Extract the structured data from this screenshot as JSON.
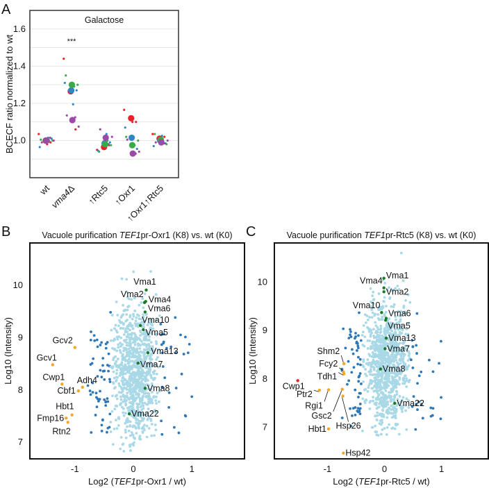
{
  "panels": {
    "a": "A",
    "b": "B",
    "c": "C"
  },
  "colors": {
    "red": "#e8212a",
    "blue": "#2f86c6",
    "green": "#3aaa48",
    "purple": "#9b4aa8",
    "cloud": "#a9d8e6",
    "outlier": "#2f78b8",
    "vma": "#1a7a2a",
    "orange": "#f5a623",
    "highlight_red": "#e8212a"
  },
  "chart_data": [
    {
      "id": "A",
      "type": "scatter",
      "title": "Galactose",
      "xlabel": "",
      "ylabel": "BCECF ratio normalized to wt",
      "ylim": [
        0.8,
        1.7
      ],
      "yticks": [
        "1.0",
        "1.2",
        "1.4",
        "1.6"
      ],
      "ytick_values": [
        1.0,
        1.2,
        1.4,
        1.6
      ],
      "grid": true,
      "categories": [
        {
          "pre": "",
          "italic": "",
          "text": "wt"
        },
        {
          "pre": "",
          "italic": "vma4",
          "text": "Δ"
        },
        {
          "pre": "↑",
          "italic": "",
          "text": "Rtc5"
        },
        {
          "pre": "↑",
          "italic": "",
          "text": "Oxr1"
        },
        {
          "pre": "↑",
          "italic": "",
          "text": "Oxr1↑Rtc5"
        }
      ],
      "annotation": {
        "category": 1,
        "text": "***",
        "y": 1.52
      },
      "series": [
        {
          "name": "red",
          "color": "red",
          "means": [
            1.0,
            1.265,
            0.965,
            1.12,
            1.01
          ],
          "replicates": [
            [
              1.035,
              0.98,
              0.99
            ],
            [
              1.44,
              1.3,
              1.06
            ],
            [
              0.95,
              0.96,
              0.975
            ],
            [
              1.165,
              1.1,
              1.1
            ],
            [
              1.035,
              1.0,
              1.02
            ]
          ]
        },
        {
          "name": "blue",
          "color": "blue",
          "means": [
            1.0,
            1.27,
            0.985,
            1.015,
            1.0
          ],
          "replicates": [
            [
              0.965,
              1.015,
              1.01
            ],
            [
              1.31,
              1.195,
              1.27
            ],
            [
              0.945,
              1.035,
              0.99
            ],
            [
              1.07,
              1.02,
              0.955
            ],
            [
              0.97,
              1.025,
              0.985
            ]
          ]
        },
        {
          "name": "green",
          "color": "green",
          "means": [
            1.0,
            1.3,
            0.98,
            0.975,
            1.005
          ],
          "replicates": [
            [
              1.005,
              0.995,
              1.0
            ],
            [
              1.35,
              1.29,
              1.3
            ],
            [
              0.94,
              1.0,
              0.975
            ],
            [
              1.02,
              0.975,
              1.0
            ],
            [
              1.035,
              1.0,
              0.98
            ]
          ]
        },
        {
          "name": "purple",
          "color": "purple",
          "means": [
            1.0,
            1.11,
            1.015,
            0.93,
            0.99
          ],
          "replicates": [
            [
              0.99,
              1.015,
              1.0
            ],
            [
              1.135,
              1.125,
              1.075
            ],
            [
              1.06,
              0.98,
              1.02
            ],
            [
              1.005,
              0.93,
              0.94
            ],
            [
              0.99,
              0.985,
              1.0
            ]
          ]
        }
      ]
    },
    {
      "id": "B",
      "type": "scatter",
      "title": {
        "pre": "Vacuole purification ",
        "italic": "TEF1",
        "post": "pr-Oxr1 (K8) vs. wt (K0)"
      },
      "xlabel": {
        "pre": "Log2 (",
        "italic": "TEF1",
        "post": "pr-Oxr1 / wt)"
      },
      "ylabel": "Log10 (Intensity)",
      "xlim": [
        -1.77,
        1.9
      ],
      "ylim": [
        6.67,
        10.8
      ],
      "xticks": [
        "-1",
        "0",
        "1"
      ],
      "xtick_values": [
        -1,
        0,
        1
      ],
      "yticks": [
        "7",
        "8",
        "9",
        "10"
      ],
      "ytick_values": [
        7,
        8,
        9,
        10
      ],
      "labeled_points": [
        {
          "name": "Vma1",
          "x": 0.22,
          "y": 9.9,
          "group": "vma"
        },
        {
          "name": "Vma2",
          "x": 0.19,
          "y": 9.66,
          "group": "vma"
        },
        {
          "name": "Vma4",
          "x": 0.21,
          "y": 9.68,
          "group": "vma"
        },
        {
          "name": "Vma6",
          "x": 0.2,
          "y": 9.48,
          "group": "vma"
        },
        {
          "name": "Vma10",
          "x": 0.12,
          "y": 9.22,
          "group": "vma"
        },
        {
          "name": "Vma5",
          "x": 0.17,
          "y": 9.14,
          "group": "vma"
        },
        {
          "name": "Vma13",
          "x": 0.25,
          "y": 8.7,
          "group": "vma"
        },
        {
          "name": "Vma7",
          "x": 0.08,
          "y": 8.5,
          "group": "vma"
        },
        {
          "name": "Vma8",
          "x": 0.2,
          "y": 8.02,
          "group": "vma"
        },
        {
          "name": "Vma22",
          "x": -0.07,
          "y": 7.53,
          "group": "vma"
        },
        {
          "name": "Gcv2",
          "x": -1.0,
          "y": 8.8,
          "group": "orange"
        },
        {
          "name": "Gcv1",
          "x": -1.38,
          "y": 8.47,
          "group": "orange"
        },
        {
          "name": "Cwp1",
          "x": -1.22,
          "y": 8.1,
          "group": "orange"
        },
        {
          "name": "Adh4",
          "x": -0.87,
          "y": 8.04,
          "group": "orange"
        },
        {
          "name": "Cbf1",
          "x": -0.94,
          "y": 7.97,
          "group": "orange"
        },
        {
          "name": "Hbt1",
          "x": -1.05,
          "y": 7.51,
          "group": "orange"
        },
        {
          "name": "Fmp16",
          "x": -1.15,
          "y": 7.45,
          "group": "orange"
        },
        {
          "name": "Rtn2",
          "x": -1.12,
          "y": 7.37,
          "group": "orange"
        }
      ]
    },
    {
      "id": "C",
      "type": "scatter",
      "title": {
        "pre": "Vacuole purification ",
        "italic": "TEF1",
        "post": "pr-Rtc5 (K8) vs. wt (K0)"
      },
      "xlabel": {
        "pre": "Log2 (",
        "italic": "TEF1",
        "post": "pr-Rtc5 / wt)"
      },
      "ylabel": "Log10 (Intensity)",
      "xlim": [
        -1.93,
        1.82
      ],
      "ylim": [
        6.33,
        10.8
      ],
      "xticks": [
        "-1",
        "0",
        "1"
      ],
      "xtick_values": [
        -1,
        0,
        1
      ],
      "yticks": [
        "7",
        "8",
        "9",
        "10"
      ],
      "ytick_values": [
        7,
        8,
        9,
        10
      ],
      "labeled_points": [
        {
          "name": "Vma1",
          "x": -0.01,
          "y": 10.07,
          "group": "vma"
        },
        {
          "name": "Vma4",
          "x": -0.01,
          "y": 9.87,
          "group": "vma"
        },
        {
          "name": "Vma2",
          "x": -0.01,
          "y": 9.79,
          "group": "vma"
        },
        {
          "name": "Vma10",
          "x": -0.05,
          "y": 9.36,
          "group": "vma"
        },
        {
          "name": "Vma6",
          "x": 0.03,
          "y": 9.24,
          "group": "vma"
        },
        {
          "name": "Vma5",
          "x": 0.02,
          "y": 9.2,
          "group": "vma"
        },
        {
          "name": "Vma13",
          "x": 0.03,
          "y": 8.83,
          "group": "vma"
        },
        {
          "name": "Vma7",
          "x": 0.01,
          "y": 8.61,
          "group": "vma"
        },
        {
          "name": "Vma8",
          "x": -0.07,
          "y": 8.19,
          "group": "vma"
        },
        {
          "name": "Vma22",
          "x": 0.18,
          "y": 7.48,
          "group": "vma"
        },
        {
          "name": "Shm2",
          "x": -0.71,
          "y": 8.3,
          "group": "orange"
        },
        {
          "name": "Fcy2",
          "x": -0.72,
          "y": 8.13,
          "group": "orange"
        },
        {
          "name": "Tdh1",
          "x": -0.71,
          "y": 8.09,
          "group": "orange"
        },
        {
          "name": "Ptr2",
          "x": -1.14,
          "y": 7.75,
          "group": "orange"
        },
        {
          "name": "Rgi1",
          "x": -0.98,
          "y": 7.76,
          "group": "orange"
        },
        {
          "name": "Gsc2",
          "x": -0.74,
          "y": 7.77,
          "group": "orange"
        },
        {
          "name": "Hsp26",
          "x": -0.73,
          "y": 7.63,
          "group": "orange"
        },
        {
          "name": "Hbt1",
          "x": -0.98,
          "y": 6.95,
          "group": "orange"
        },
        {
          "name": "Hsp42",
          "x": -0.72,
          "y": 6.45,
          "group": "orange"
        },
        {
          "name": "Cwp1",
          "x": -1.52,
          "y": 7.95,
          "group": "red"
        }
      ]
    }
  ]
}
